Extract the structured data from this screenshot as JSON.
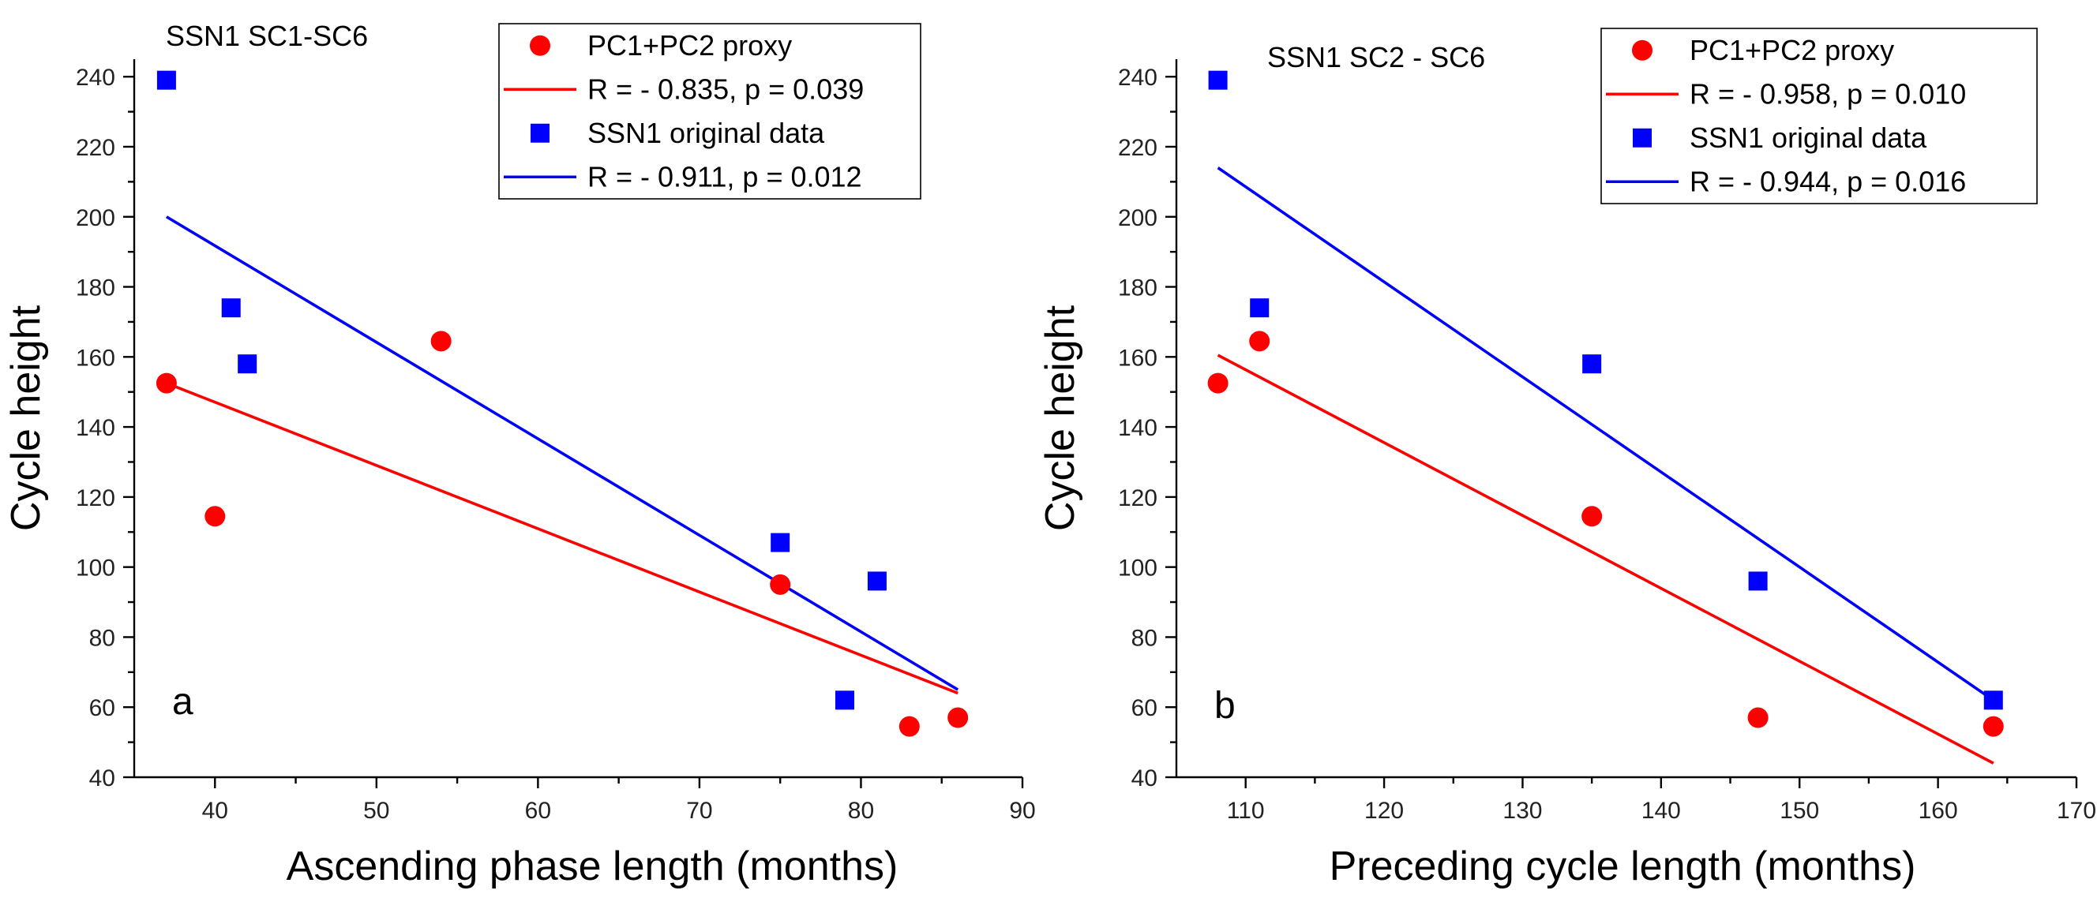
{
  "chart_data": [
    {
      "type": "scatter",
      "id": "a",
      "title": "SSN1 SC1-SC6",
      "panel_label": "a",
      "xlabel": "Ascending phase length (months)",
      "ylabel": "Cycle height",
      "xlim": [
        35,
        90
      ],
      "ylim": [
        40,
        245
      ],
      "xticks": [
        40,
        50,
        60,
        70,
        80,
        90
      ],
      "yticks": [
        40,
        60,
        80,
        100,
        120,
        140,
        160,
        180,
        200,
        220,
        240
      ],
      "legend_position": "top-right",
      "series": [
        {
          "name": "PC1+PC2 proxy",
          "marker": "circle",
          "color": "#ff0000",
          "points": [
            [
              37,
              152.5
            ],
            [
              40,
              114.5
            ],
            [
              54,
              164.5
            ],
            [
              75,
              95
            ],
            [
              83,
              54.5
            ],
            [
              86,
              57
            ]
          ],
          "fit": {
            "label": "R = - 0.835, p = 0.039",
            "x": [
              37,
              86
            ],
            "y": [
              152.5,
              64
            ]
          }
        },
        {
          "name": "SSN1 original data",
          "marker": "square",
          "color": "#0000ff",
          "points": [
            [
              37,
              239
            ],
            [
              41,
              174
            ],
            [
              42,
              158
            ],
            [
              75,
              107
            ],
            [
              79,
              62
            ],
            [
              81,
              96
            ]
          ],
          "fit": {
            "label": "R = - 0.911, p = 0.012",
            "x": [
              37,
              86
            ],
            "y": [
              200,
              65
            ]
          }
        }
      ]
    },
    {
      "type": "scatter",
      "id": "b",
      "title": "SSN1 SC2 - SC6",
      "panel_label": "b",
      "xlabel": "Preceding cycle length (months)",
      "ylabel": "Cycle height",
      "xlim": [
        105,
        170
      ],
      "ylim": [
        40,
        245
      ],
      "xticks": [
        110,
        120,
        130,
        140,
        150,
        160,
        170
      ],
      "yticks": [
        40,
        60,
        80,
        100,
        120,
        140,
        160,
        180,
        200,
        220,
        240
      ],
      "legend_position": "top-right",
      "series": [
        {
          "name": "PC1+PC2 proxy",
          "marker": "circle",
          "color": "#ff0000",
          "points": [
            [
              108,
              152.5
            ],
            [
              111,
              164.5
            ],
            [
              135,
              114.5
            ],
            [
              147,
              57
            ],
            [
              164,
              54.5
            ]
          ],
          "fit": {
            "label": "R = - 0.958, p = 0.010",
            "x": [
              108,
              164
            ],
            "y": [
              160.5,
              44
            ]
          }
        },
        {
          "name": "SSN1 original data",
          "marker": "square",
          "color": "#0000ff",
          "points": [
            [
              108,
              239
            ],
            [
              111,
              174
            ],
            [
              135,
              158
            ],
            [
              147,
              96
            ],
            [
              164,
              62
            ]
          ],
          "fit": {
            "label": "R = - 0.944, p = 0.016",
            "x": [
              108,
              164
            ],
            "y": [
              214,
              62
            ]
          }
        }
      ]
    }
  ]
}
